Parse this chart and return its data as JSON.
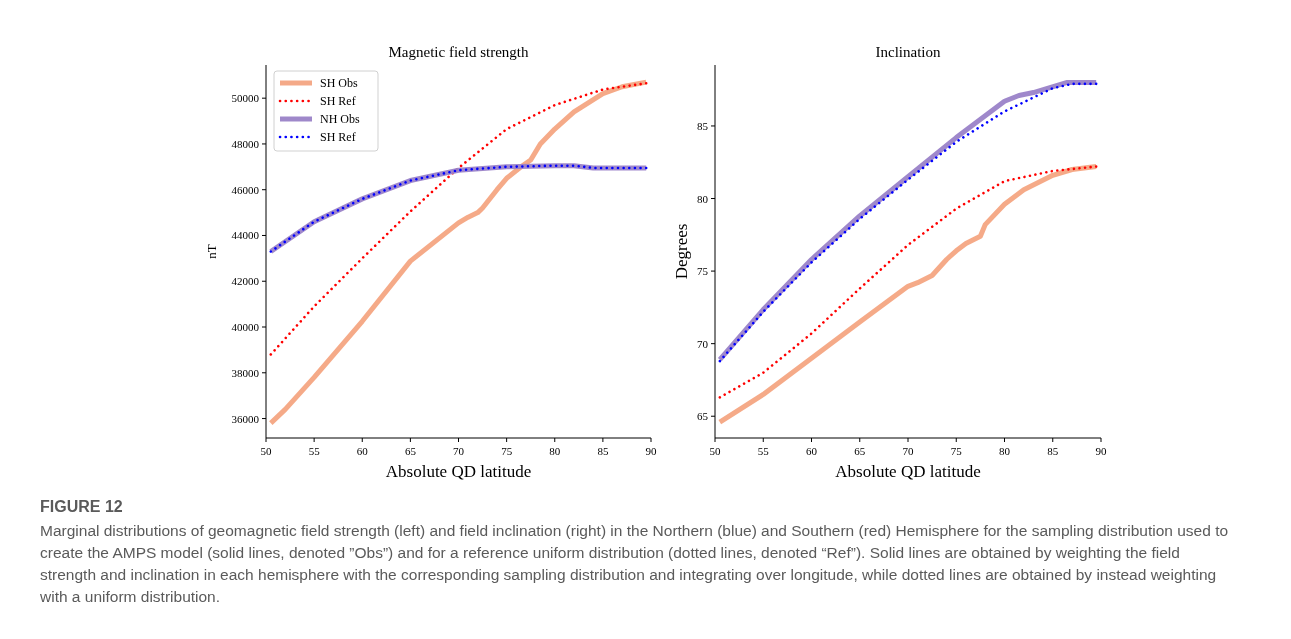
{
  "chart_data": [
    {
      "type": "line",
      "title": "Magnetic field strength",
      "xlabel": "Absolute QD latitude",
      "ylabel": "nT",
      "xlim": [
        50,
        90
      ],
      "xticks": [
        50,
        55,
        60,
        65,
        70,
        75,
        80,
        85,
        90
      ],
      "ylim": [
        35150,
        51450
      ],
      "yticks": [
        36000,
        38000,
        40000,
        42000,
        44000,
        46000,
        48000,
        50000
      ],
      "legend": "top left",
      "grid": false,
      "annotations": [
        "FIGURE 12",
        "Marginal distributions of geomagnetic field strength (left) and field inclination (right) in the Northern (blue) and Southern (red) Hemisphere for the sampling distribution used to create the AMPS model (solid lines, denoted ”Obs”) and for a reference uniform distribution (dotted lines, denoted “Ref”). Solid lines are obtained by weighting the field strength and inclination in each hemisphere with the corresponding sampling distribution and integrating over longitude, while dotted lines are obtained by instead weighting with a uniform distribution."
      ],
      "series": [
        {
          "name": "SH Obs",
          "color": "#f4a582",
          "line_style": "solid",
          "x": [
            50.5,
            52,
            55,
            60,
            65,
            70,
            71,
            72,
            72.5,
            74,
            75,
            76.5,
            77.5,
            78.5,
            80,
            82,
            85,
            87,
            89.5
          ],
          "values": [
            35800,
            36400,
            37800,
            40250,
            42880,
            44550,
            44800,
            45000,
            45200,
            46000,
            46500,
            47000,
            47300,
            48000,
            48650,
            49400,
            50200,
            50500,
            50700
          ]
        },
        {
          "name": "SH Ref",
          "color": "#ff0000",
          "line_style": "dotted",
          "x": [
            50.5,
            55,
            60,
            65,
            70,
            75,
            80,
            85,
            89.5
          ],
          "values": [
            38800,
            40900,
            43000,
            45050,
            46950,
            48650,
            49700,
            50380,
            50650
          ]
        },
        {
          "name": "NH Obs",
          "color": "#9a82c8",
          "line_style": "solid",
          "x": [
            50.5,
            55,
            60,
            65,
            70,
            75,
            80,
            82,
            84,
            89.5
          ],
          "values": [
            43300,
            44600,
            45600,
            46400,
            46850,
            47000,
            47050,
            47050,
            46950,
            46950
          ]
        },
        {
          "name": "SH Ref",
          "color": "#0000ff",
          "line_style": "dotted",
          "x": [
            50.5,
            55,
            60,
            65,
            70,
            75,
            80,
            82,
            84,
            89.5
          ],
          "values": [
            43300,
            44600,
            45600,
            46400,
            46850,
            47000,
            47050,
            47050,
            46950,
            46950
          ]
        }
      ]
    },
    {
      "type": "line",
      "title": "Inclination",
      "xlabel": "Absolute QD latitude",
      "ylabel": "Degrees",
      "xlim": [
        50,
        90
      ],
      "xticks": [
        50,
        55,
        60,
        65,
        70,
        75,
        80,
        85,
        90
      ],
      "ylim": [
        63.5,
        89.2
      ],
      "yticks": [
        65,
        70,
        75,
        80,
        85
      ],
      "grid": false,
      "series": [
        {
          "color": "#f4a582",
          "line_style": "solid",
          "x": [
            50.5,
            55,
            60,
            65,
            70,
            71,
            72.5,
            74,
            75,
            76,
            77.5,
            78,
            80,
            82,
            85,
            87,
            89.5
          ],
          "values": [
            64.6,
            66.5,
            69.0,
            71.5,
            73.95,
            74.2,
            74.7,
            75.8,
            76.4,
            76.9,
            77.4,
            78.2,
            79.6,
            80.6,
            81.6,
            82.0,
            82.2
          ]
        },
        {
          "color": "#ff0000",
          "line_style": "dotted",
          "x": [
            50.5,
            55,
            60,
            65,
            70,
            75,
            80,
            85,
            89.5
          ],
          "values": [
            66.3,
            68.0,
            70.7,
            73.8,
            76.8,
            79.3,
            81.2,
            81.9,
            82.2
          ]
        },
        {
          "color": "#9a82c8",
          "line_style": "solid",
          "x": [
            50.5,
            55,
            60,
            65,
            70,
            75,
            80,
            81.5,
            83,
            86.5,
            89.5
          ],
          "values": [
            68.9,
            72.35,
            75.8,
            78.8,
            81.5,
            84.2,
            86.7,
            87.1,
            87.3,
            88.0,
            88.0
          ]
        },
        {
          "color": "#0000ff",
          "line_style": "dotted",
          "x": [
            50.5,
            55,
            60,
            65,
            70,
            75,
            80,
            85,
            87,
            89.5
          ],
          "values": [
            68.8,
            72.2,
            75.6,
            78.6,
            81.3,
            83.9,
            86.0,
            87.6,
            87.9,
            87.9
          ]
        }
      ]
    }
  ]
}
